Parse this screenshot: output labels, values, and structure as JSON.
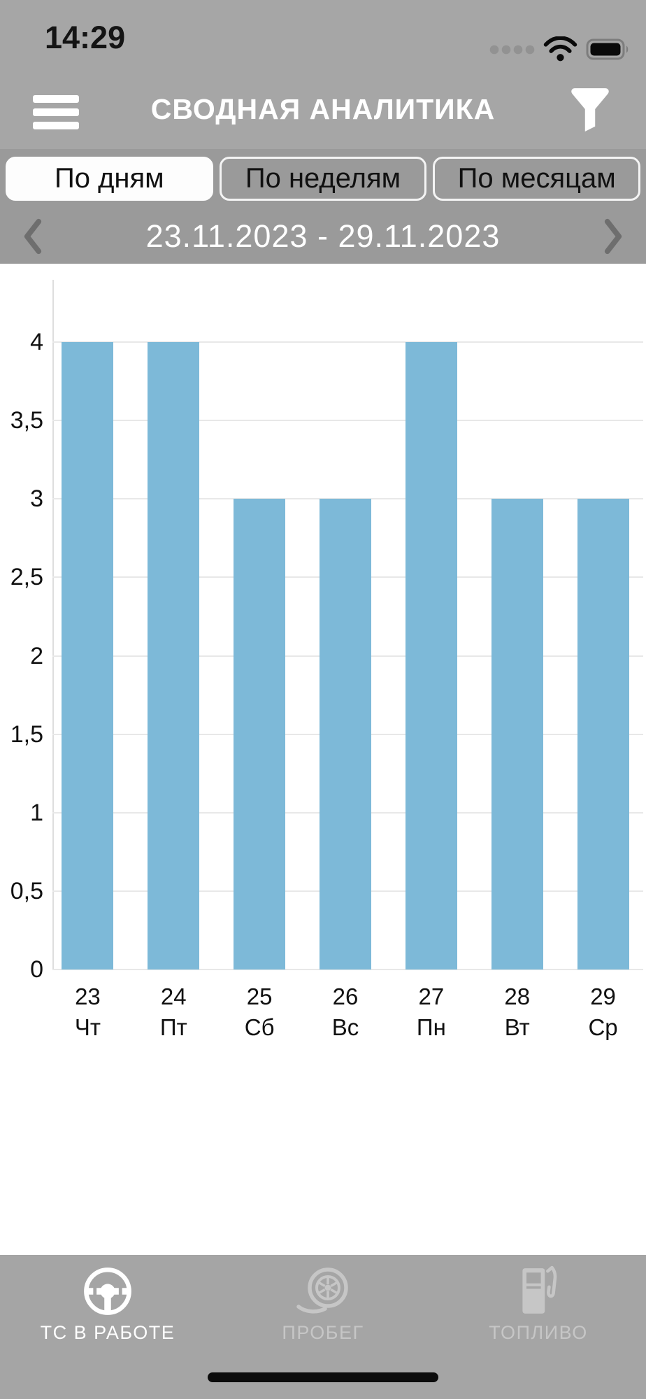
{
  "status_bar": {
    "time": "14:29"
  },
  "header": {
    "title": "СВОДНАЯ АНАЛИТИКА"
  },
  "period_tabs": [
    {
      "label": "По дням",
      "selected": true
    },
    {
      "label": "По неделям",
      "selected": false
    },
    {
      "label": "По месяцам",
      "selected": false
    }
  ],
  "date_nav": {
    "range": "23.11.2023 - 29.11.2023"
  },
  "chart_data": {
    "type": "bar",
    "title": "",
    "xlabel": "",
    "ylabel": "",
    "categories": [
      {
        "date": "23",
        "weekday": "Чт"
      },
      {
        "date": "24",
        "weekday": "Пт"
      },
      {
        "date": "25",
        "weekday": "Сб"
      },
      {
        "date": "26",
        "weekday": "Вс"
      },
      {
        "date": "27",
        "weekday": "Пн"
      },
      {
        "date": "28",
        "weekday": "Вт"
      },
      {
        "date": "29",
        "weekday": "Ср"
      }
    ],
    "values": [
      4,
      4,
      3,
      3,
      4,
      3,
      3
    ],
    "y_ticks": [
      "0",
      "0,5",
      "1",
      "1,5",
      "2",
      "2,5",
      "3",
      "3,5",
      "4"
    ],
    "y_tick_step": 0.5,
    "ylim": [
      0,
      4.4
    ],
    "grid": true,
    "bar_color": "#7db9d8",
    "gridline_color": "#e8e8e8"
  },
  "tab_bar": {
    "items": [
      {
        "label": "ТС В РАБОТЕ",
        "icon": "steering-wheel-icon",
        "active": true
      },
      {
        "label": "ПРОБЕГ",
        "icon": "tire-icon",
        "active": false
      },
      {
        "label": "ТОПЛИВО",
        "icon": "fuel-pump-icon",
        "active": false
      }
    ]
  }
}
